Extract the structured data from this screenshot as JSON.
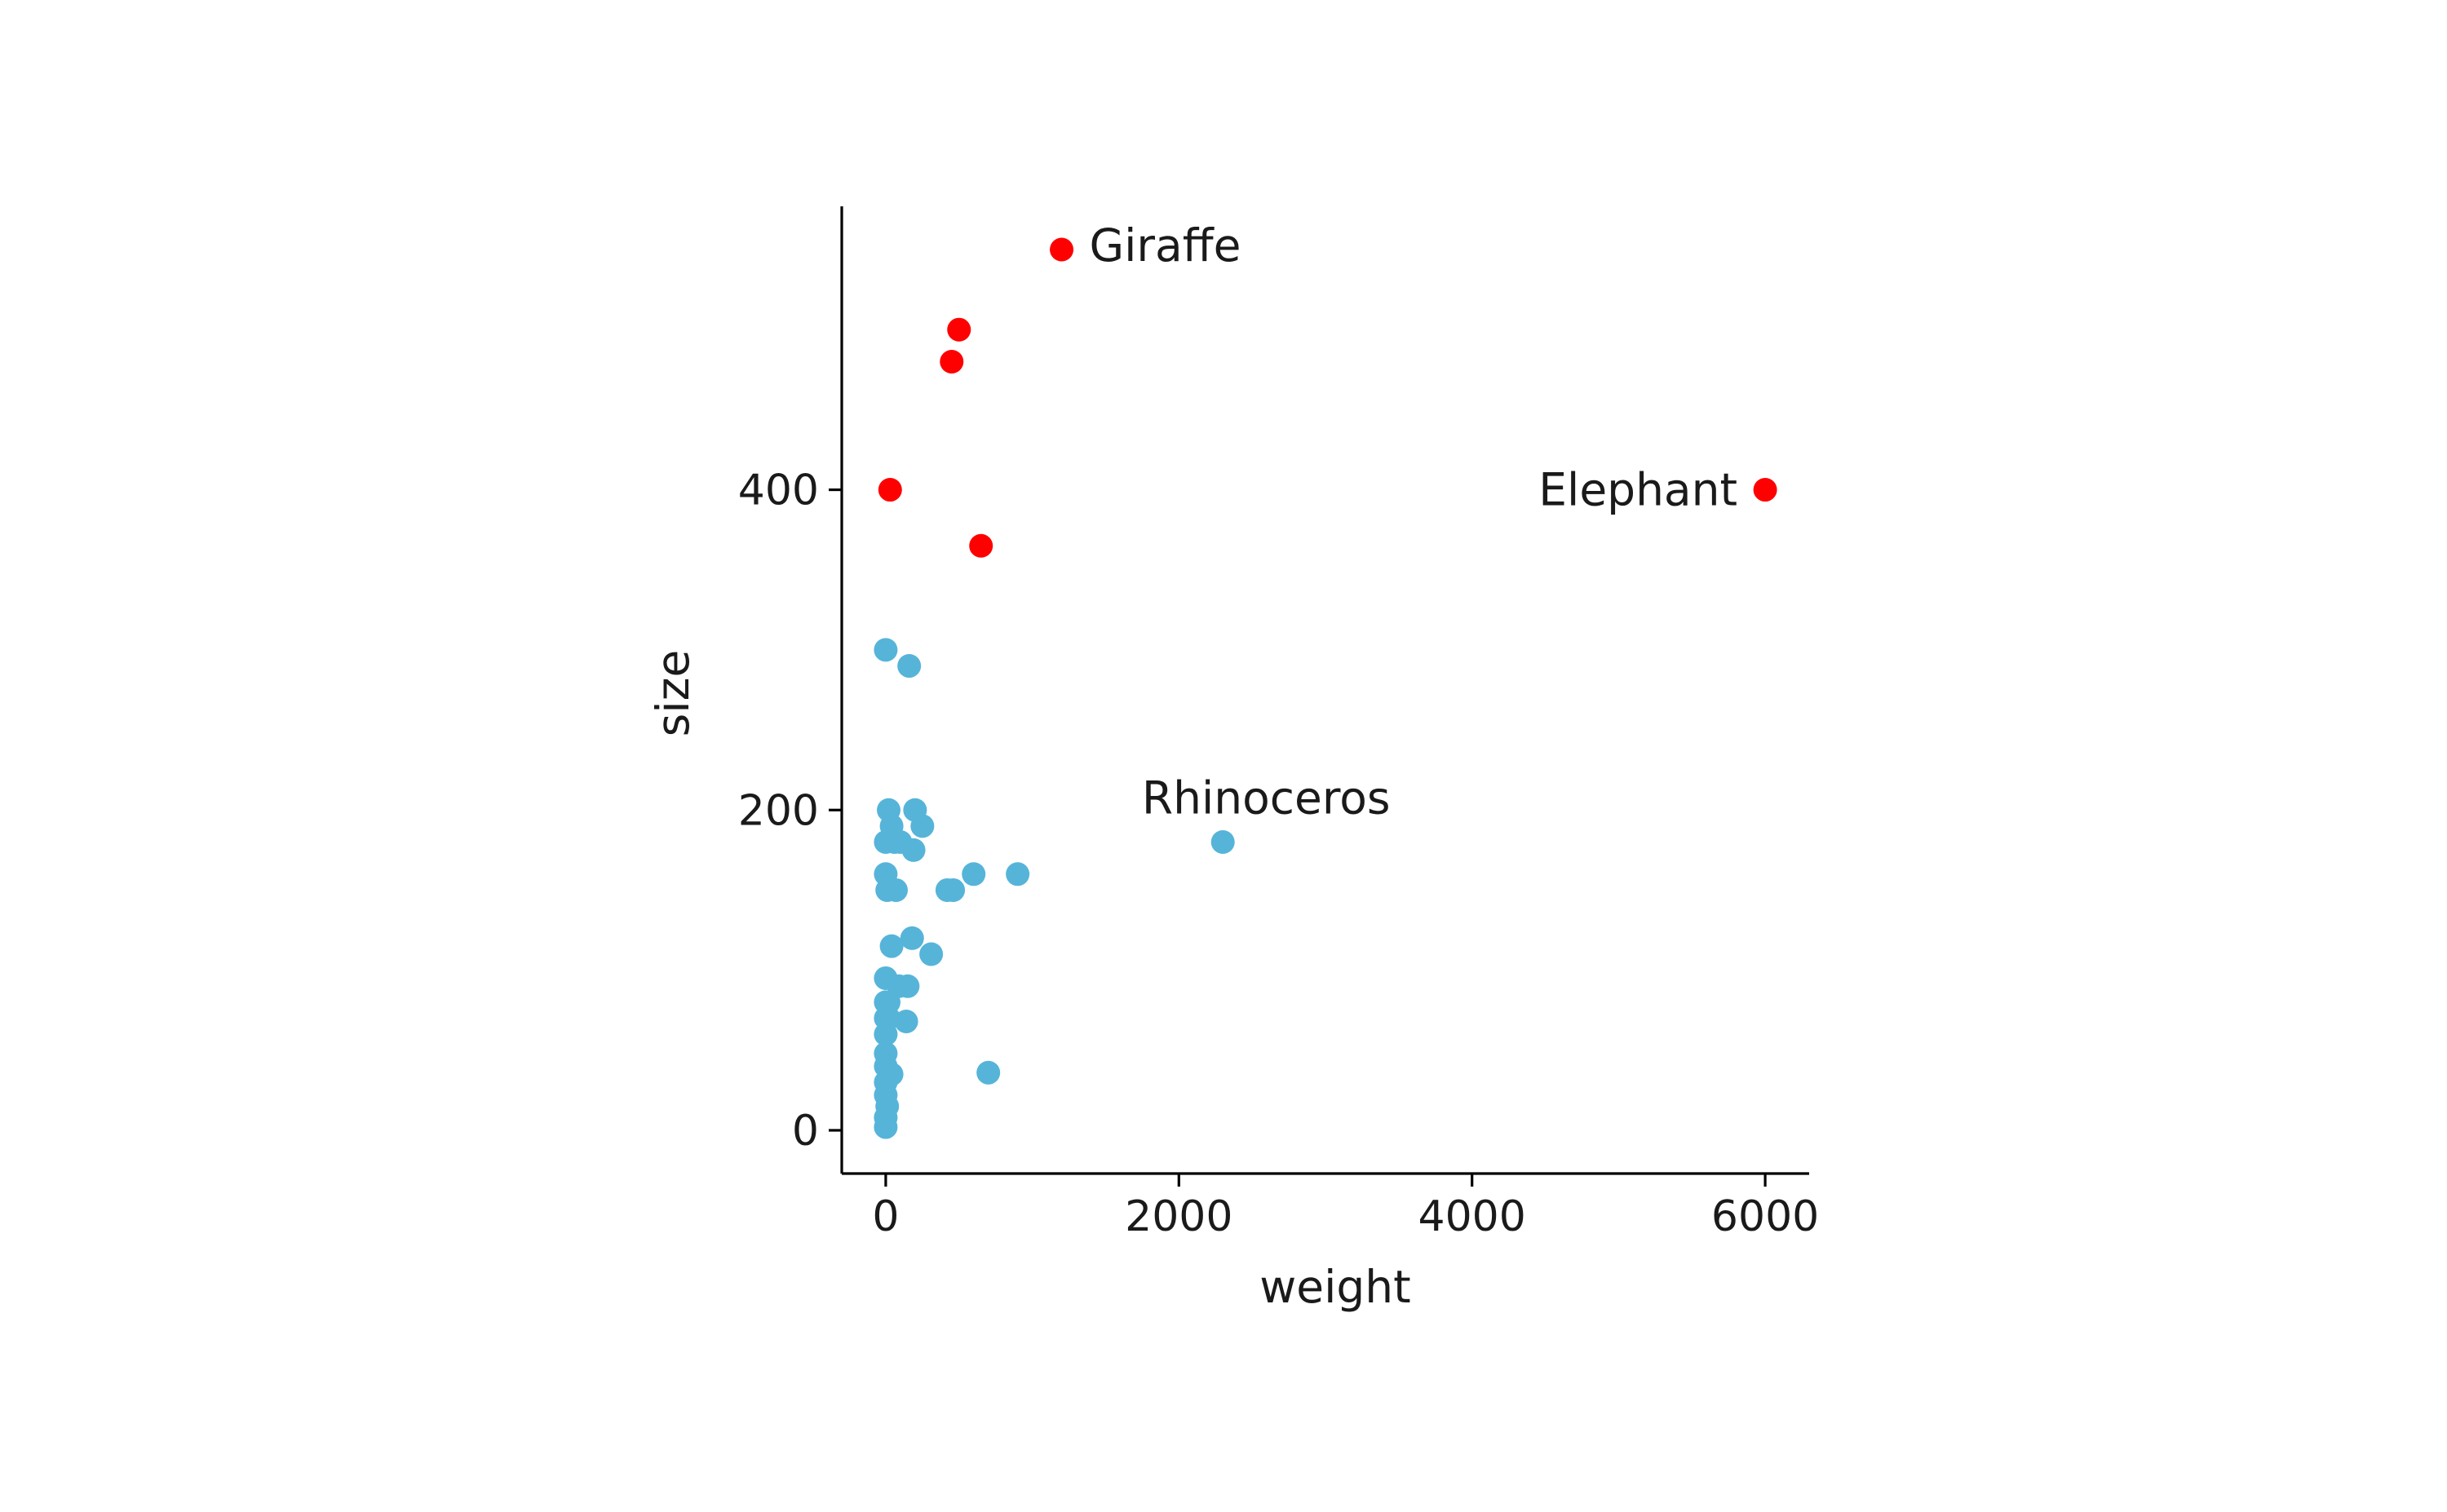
{
  "chart_data": {
    "type": "scatter",
    "title": "",
    "xlabel": "weight",
    "ylabel": "size",
    "xlim": [
      -300,
      6300
    ],
    "ylim": [
      -27,
      577
    ],
    "xticks": [
      0,
      2000,
      4000,
      6000
    ],
    "yticks": [
      0,
      200,
      400
    ],
    "grid": false,
    "legend": "none",
    "colors": {
      "highlight": "#ff0000",
      "base": "#56b4d9"
    },
    "series": [
      {
        "group": "tall",
        "color": "#ff0000",
        "points": [
          {
            "x": 1200,
            "y": 550,
            "label": "Giraffe",
            "label_side": "right"
          },
          {
            "x": 500,
            "y": 500
          },
          {
            "x": 450,
            "y": 480
          },
          {
            "x": 30,
            "y": 400
          },
          {
            "x": 650,
            "y": 365
          },
          {
            "x": 6000,
            "y": 400,
            "label": "Elephant",
            "label_side": "left"
          }
        ]
      },
      {
        "group": "other",
        "color": "#56b4d9",
        "points": [
          {
            "x": 2300,
            "y": 180,
            "label": "Rhinoceros",
            "label_side": "above"
          },
          {
            "x": 0,
            "y": 300
          },
          {
            "x": 160,
            "y": 290
          },
          {
            "x": 20,
            "y": 200
          },
          {
            "x": 200,
            "y": 200
          },
          {
            "x": 40,
            "y": 190
          },
          {
            "x": 250,
            "y": 190
          },
          {
            "x": 0,
            "y": 180
          },
          {
            "x": 60,
            "y": 180
          },
          {
            "x": 100,
            "y": 180
          },
          {
            "x": 190,
            "y": 175
          },
          {
            "x": 0,
            "y": 160
          },
          {
            "x": 600,
            "y": 160
          },
          {
            "x": 900,
            "y": 160
          },
          {
            "x": 10,
            "y": 150
          },
          {
            "x": 70,
            "y": 150
          },
          {
            "x": 420,
            "y": 150
          },
          {
            "x": 460,
            "y": 150
          },
          {
            "x": 180,
            "y": 120
          },
          {
            "x": 40,
            "y": 115
          },
          {
            "x": 310,
            "y": 110
          },
          {
            "x": 0,
            "y": 95
          },
          {
            "x": 90,
            "y": 90
          },
          {
            "x": 150,
            "y": 90
          },
          {
            "x": 0,
            "y": 80
          },
          {
            "x": 20,
            "y": 80
          },
          {
            "x": 0,
            "y": 70
          },
          {
            "x": 20,
            "y": 70
          },
          {
            "x": 140,
            "y": 68
          },
          {
            "x": 0,
            "y": 60
          },
          {
            "x": 0,
            "y": 48
          },
          {
            "x": 0,
            "y": 40
          },
          {
            "x": 40,
            "y": 35
          },
          {
            "x": 700,
            "y": 36
          },
          {
            "x": 0,
            "y": 30
          },
          {
            "x": 0,
            "y": 22
          },
          {
            "x": 10,
            "y": 15
          },
          {
            "x": 0,
            "y": 8
          },
          {
            "x": 0,
            "y": 2
          }
        ]
      }
    ]
  }
}
